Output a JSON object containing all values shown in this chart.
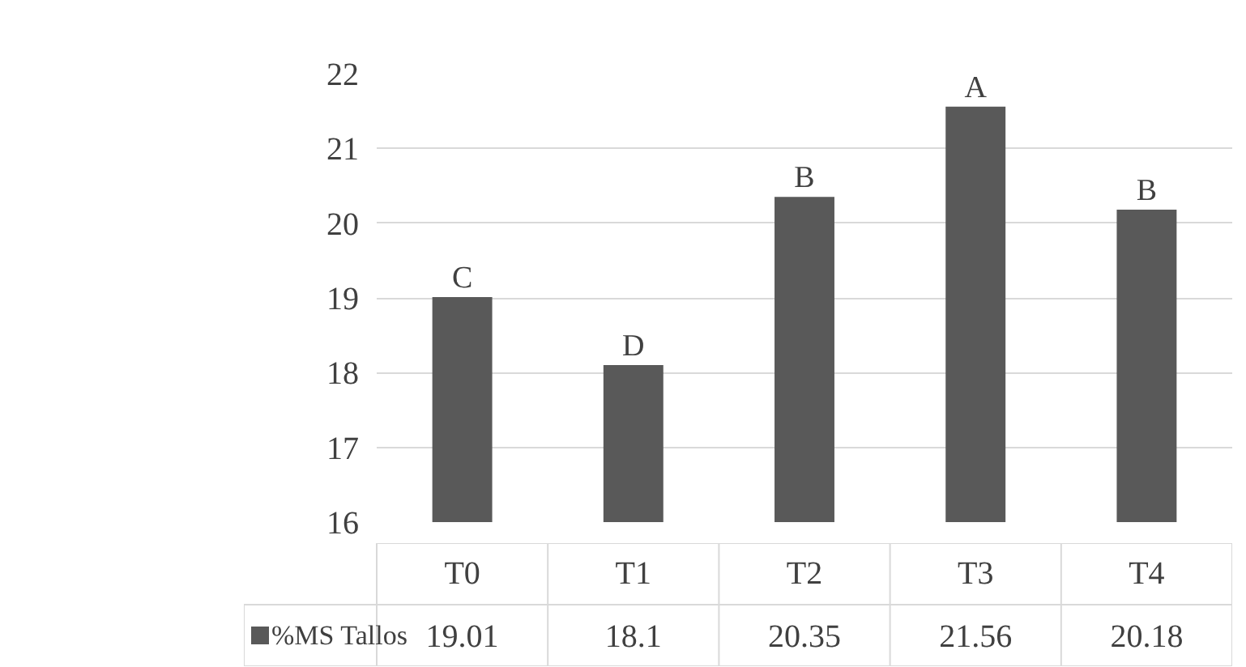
{
  "chart_data": {
    "type": "bar",
    "categories": [
      "T0",
      "T1",
      "T2",
      "T3",
      "T4"
    ],
    "series": [
      {
        "name": "%MS Tallos",
        "color": "#595959",
        "values": [
          19.01,
          18.1,
          20.35,
          21.56,
          20.18
        ]
      }
    ],
    "ylim": [
      16,
      22
    ],
    "yticks": [
      16,
      17,
      18,
      19,
      20,
      21,
      22
    ],
    "grid": "y",
    "data_labels": true,
    "legend": "bottom",
    "annotations": [
      {
        "text": "C",
        "x": "T0",
        "y": 19.01
      },
      {
        "text": "D",
        "x": "T1",
        "y": 18.1
      },
      {
        "text": "B",
        "x": "T2",
        "y": 20.35
      },
      {
        "text": "A",
        "x": "T3",
        "y": 21.56
      },
      {
        "text": "B",
        "x": "T4",
        "y": 20.18
      }
    ]
  }
}
